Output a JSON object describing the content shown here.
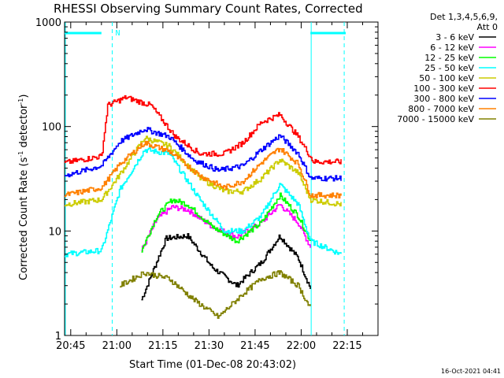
{
  "chart_data": {
    "type": "line",
    "title": "RHESSI Observing Summary Count Rates, Corrected",
    "xlabel": "Start Time (01-Dec-08 20:43:02)",
    "ylabel_main": "Corrected Count Rate (s",
    "ylabel_sup1": "-1",
    "ylabel_mid": " detector",
    "ylabel_sup2": "-1",
    "ylabel_end": ")",
    "yscale": "log",
    "ylim": [
      1,
      1000
    ],
    "y_ticks": [
      {
        "value": 1,
        "label": "1"
      },
      {
        "value": 10,
        "label": "10"
      },
      {
        "value": 100,
        "label": "100"
      },
      {
        "value": 1000,
        "label": "1000"
      }
    ],
    "x_ticks": [
      "20:45",
      "21:00",
      "21:15",
      "21:30",
      "21:45",
      "22:00",
      "22:15"
    ],
    "x_tick_minutes": [
      2,
      17,
      32,
      47,
      62,
      77,
      92
    ],
    "xlim_minutes": [
      0,
      102
    ],
    "legend_header": [
      "Det 1,3,4,5,6,9,",
      "Att 0"
    ],
    "series": [
      {
        "name": "3 - 6 keV",
        "color": "#000000",
        "values": [
          [
            25,
            2.2
          ],
          [
            33,
            8.5
          ],
          [
            40,
            9.0
          ],
          [
            48,
            4.5
          ],
          [
            56,
            3.0
          ],
          [
            64,
            5.0
          ],
          [
            70,
            9.0
          ],
          [
            76,
            5.5
          ],
          [
            80,
            2.8
          ]
        ]
      },
      {
        "name": "6 - 12 keV",
        "color": "#ff00ff",
        "values": [
          [
            25,
            6.5
          ],
          [
            30,
            13
          ],
          [
            35,
            17
          ],
          [
            40,
            16
          ],
          [
            48,
            11
          ],
          [
            56,
            8.8
          ],
          [
            64,
            12
          ],
          [
            70,
            18
          ],
          [
            76,
            12
          ],
          [
            80,
            7
          ]
        ]
      },
      {
        "name": "12 - 25 keV",
        "color": "#00ff00",
        "values": [
          [
            25,
            6.5
          ],
          [
            30,
            14
          ],
          [
            35,
            20
          ],
          [
            40,
            18
          ],
          [
            48,
            11
          ],
          [
            56,
            8
          ],
          [
            64,
            12
          ],
          [
            70,
            22
          ],
          [
            76,
            14
          ],
          [
            80,
            8
          ]
        ]
      },
      {
        "name": "25 - 50 keV",
        "color": "#00ffff",
        "values": [
          [
            0,
            6
          ],
          [
            12,
            6.5
          ],
          [
            18,
            25
          ],
          [
            26,
            60
          ],
          [
            34,
            55
          ],
          [
            44,
            20
          ],
          [
            52,
            10
          ],
          [
            58,
            10
          ],
          [
            64,
            14
          ],
          [
            70,
            28
          ],
          [
            76,
            18
          ],
          [
            80,
            8
          ],
          [
            90,
            6
          ]
        ]
      },
      {
        "name": "50 - 100 keV",
        "color": "#cccc00",
        "values": [
          [
            0,
            18
          ],
          [
            12,
            20
          ],
          [
            18,
            35
          ],
          [
            26,
            78
          ],
          [
            34,
            65
          ],
          [
            44,
            32
          ],
          [
            52,
            24
          ],
          [
            58,
            24
          ],
          [
            64,
            32
          ],
          [
            70,
            48
          ],
          [
            76,
            36
          ],
          [
            80,
            20
          ],
          [
            90,
            18
          ]
        ]
      },
      {
        "name": "100 - 300 keV",
        "color": "#ff0000",
        "values": [
          [
            0,
            45
          ],
          [
            12,
            52
          ],
          [
            14,
            160
          ],
          [
            20,
            190
          ],
          [
            28,
            160
          ],
          [
            36,
            80
          ],
          [
            44,
            55
          ],
          [
            52,
            55
          ],
          [
            58,
            70
          ],
          [
            64,
            110
          ],
          [
            70,
            130
          ],
          [
            76,
            80
          ],
          [
            81,
            46
          ],
          [
            90,
            46
          ]
        ]
      },
      {
        "name": "300 - 800 keV",
        "color": "#0000ff",
        "values": [
          [
            0,
            34
          ],
          [
            12,
            42
          ],
          [
            18,
            72
          ],
          [
            26,
            95
          ],
          [
            34,
            80
          ],
          [
            42,
            48
          ],
          [
            50,
            38
          ],
          [
            58,
            42
          ],
          [
            64,
            60
          ],
          [
            70,
            82
          ],
          [
            76,
            55
          ],
          [
            80,
            32
          ],
          [
            90,
            32
          ]
        ]
      },
      {
        "name": "800 - 7000 keV",
        "color": "#ff8000",
        "values": [
          [
            0,
            22
          ],
          [
            12,
            26
          ],
          [
            18,
            44
          ],
          [
            26,
            70
          ],
          [
            34,
            58
          ],
          [
            44,
            34
          ],
          [
            52,
            26
          ],
          [
            58,
            30
          ],
          [
            64,
            45
          ],
          [
            70,
            62
          ],
          [
            76,
            44
          ],
          [
            80,
            22
          ],
          [
            90,
            22
          ]
        ]
      },
      {
        "name": "7000 - 15000 keV",
        "color": "#808000",
        "values": [
          [
            18,
            3
          ],
          [
            26,
            4
          ],
          [
            34,
            3.5
          ],
          [
            42,
            2.2
          ],
          [
            50,
            1.5
          ],
          [
            58,
            2.5
          ],
          [
            64,
            3.5
          ],
          [
            70,
            4
          ],
          [
            76,
            3
          ],
          [
            80,
            1.8
          ]
        ]
      }
    ],
    "annotations": {
      "marker_label": "N",
      "saa_segments_minutes": [
        [
          0,
          12
        ],
        [
          80,
          91.5
        ]
      ],
      "dashed_lines_minutes": [
        15.5,
        91
      ],
      "solid_lines_minutes": [
        0,
        80
      ]
    }
  },
  "footer_timestamp": "16-Oct-2021 04:41"
}
